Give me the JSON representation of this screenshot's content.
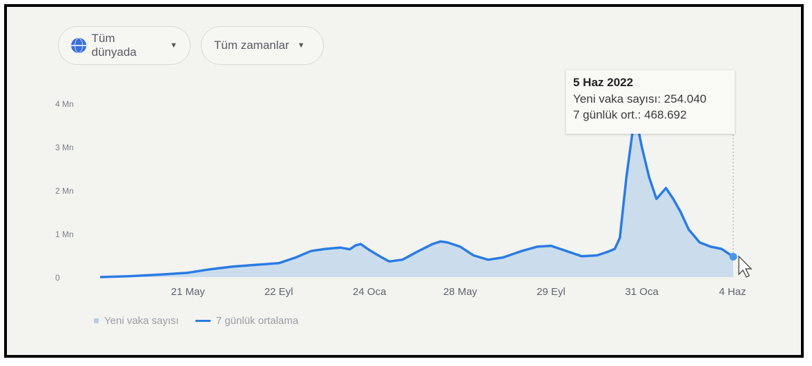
{
  "filters": {
    "region_label": "Tüm dünyada",
    "region_icon": "globe-icon",
    "time_label": "Tüm zamanlar"
  },
  "tooltip": {
    "date": "5 Haz 2022",
    "new_cases": "Yeni vaka sayısı: 254.040",
    "avg": "7 günlük ort.: 468.692"
  },
  "legend": {
    "bars_label": "Yeni vaka sayısı",
    "line_label": "7 günlük ortalama"
  },
  "colors": {
    "line": "#2a7be3",
    "area": "#bdd6ec",
    "marker": "#4a97e6"
  },
  "chart_data": {
    "type": "area",
    "title": "",
    "xlabel": "",
    "ylabel": "",
    "ylim": [
      0,
      4000000
    ],
    "yticks": [
      0,
      1000000,
      2000000,
      3000000,
      4000000
    ],
    "ytick_labels": [
      "0",
      "1 Mn",
      "2 Mn",
      "3 Mn",
      "4 Mn"
    ],
    "xtick_labels": [
      "21 May",
      "22 Eyl",
      "24 Oca",
      "28 May",
      "29 Eyl",
      "31 Oca",
      "4 Haz"
    ],
    "xtick_dates": [
      "2020-05-21",
      "2020-09-22",
      "2021-01-24",
      "2021-05-28",
      "2021-09-29",
      "2022-01-31",
      "2022-06-04"
    ],
    "xlim": [
      "2020-01-22",
      "2022-06-05"
    ],
    "series": [
      {
        "name": "7 günlük ortalama",
        "x": [
          "2020-01-22",
          "2020-03-01",
          "2020-04-15",
          "2020-05-21",
          "2020-06-20",
          "2020-07-20",
          "2020-08-20",
          "2020-09-22",
          "2020-10-15",
          "2020-11-05",
          "2020-11-25",
          "2020-12-15",
          "2020-12-28",
          "2021-01-05",
          "2021-01-12",
          "2021-01-24",
          "2021-02-10",
          "2021-02-20",
          "2021-03-10",
          "2021-04-01",
          "2021-04-20",
          "2021-05-01",
          "2021-05-10",
          "2021-05-28",
          "2021-06-15",
          "2021-07-05",
          "2021-07-25",
          "2021-08-20",
          "2021-09-10",
          "2021-09-29",
          "2021-10-20",
          "2021-11-10",
          "2021-12-01",
          "2021-12-15",
          "2021-12-25",
          "2022-01-01",
          "2022-01-10",
          "2022-01-18",
          "2022-01-25",
          "2022-01-31",
          "2022-02-10",
          "2022-02-20",
          "2022-03-05",
          "2022-03-15",
          "2022-03-25",
          "2022-04-05",
          "2022-04-20",
          "2022-05-05",
          "2022-05-20",
          "2022-06-05"
        ],
        "y": [
          0,
          20000,
          60000,
          100000,
          180000,
          240000,
          280000,
          320000,
          450000,
          600000,
          650000,
          680000,
          640000,
          730000,
          760000,
          620000,
          450000,
          360000,
          400000,
          600000,
          760000,
          820000,
          800000,
          700000,
          500000,
          400000,
          450000,
          600000,
          700000,
          720000,
          600000,
          480000,
          500000,
          580000,
          650000,
          900000,
          2300000,
          3300000,
          3500000,
          3000000,
          2300000,
          1800000,
          2050000,
          1800000,
          1500000,
          1100000,
          800000,
          700000,
          650000,
          468692
        ]
      }
    ]
  }
}
